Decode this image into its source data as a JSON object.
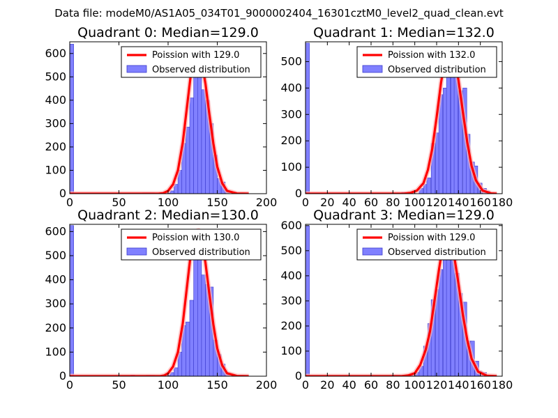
{
  "figure_title": "Data file: modeM0/AS1A05_034T01_9000002404_16301cztM0_level2_quad_clean.evt",
  "colors": {
    "bar_fill": "#8080ff",
    "bar_edge": "#3a3acc",
    "poisson_line": "#ff0000",
    "poisson_glow": "#ffb3b3",
    "axes": "#000000"
  },
  "chart_data": [
    {
      "type": "bar",
      "title": "Quadrant 0: Median=129.0",
      "median": 129.0,
      "xlim": [
        0,
        200
      ],
      "ylim": [
        0,
        650
      ],
      "xticks": [
        0,
        50,
        100,
        150,
        200
      ],
      "yticks": [
        0,
        100,
        200,
        300,
        400,
        500,
        600
      ],
      "bin_width": 4,
      "bins": [
        [
          0,
          640
        ],
        [
          74,
          4
        ],
        [
          78,
          4
        ],
        [
          82,
          4
        ],
        [
          98,
          2
        ],
        [
          102,
          12
        ],
        [
          106,
          40
        ],
        [
          110,
          100
        ],
        [
          114,
          215
        ],
        [
          118,
          285
        ],
        [
          122,
          410
        ],
        [
          126,
          610
        ],
        [
          130,
          525
        ],
        [
          134,
          445
        ],
        [
          138,
          400
        ],
        [
          142,
          300
        ],
        [
          146,
          165
        ],
        [
          150,
          65
        ],
        [
          154,
          50
        ],
        [
          158,
          15
        ]
      ],
      "poisson_x": [
        0,
        90,
        95,
        100,
        105,
        110,
        115,
        120,
        124,
        128,
        130,
        134,
        138,
        142,
        146,
        150,
        155,
        160,
        170,
        182
      ],
      "poisson_y": [
        0,
        0,
        2,
        12,
        40,
        100,
        220,
        400,
        540,
        605,
        610,
        570,
        470,
        340,
        215,
        115,
        45,
        12,
        1,
        0
      ],
      "legend": [
        "Poission with 129.0",
        "Observed distribution"
      ]
    },
    {
      "type": "bar",
      "title": "Quadrant 1: Median=132.0",
      "median": 132.0,
      "xlim": [
        0,
        180
      ],
      "ylim": [
        0,
        575
      ],
      "xticks": [
        0,
        20,
        40,
        60,
        80,
        100,
        120,
        140,
        160,
        180
      ],
      "yticks": [
        0,
        100,
        200,
        300,
        400,
        500
      ],
      "bin_width": 3.6,
      "bins": [
        [
          0,
          570
        ],
        [
          80,
          3
        ],
        [
          88,
          5
        ],
        [
          96,
          5
        ],
        [
          104,
          20
        ],
        [
          108,
          35
        ],
        [
          111,
          60
        ],
        [
          115,
          190
        ],
        [
          119,
          230
        ],
        [
          122,
          375
        ],
        [
          126,
          400
        ],
        [
          129,
          510
        ],
        [
          133,
          545
        ],
        [
          136,
          520
        ],
        [
          140,
          390
        ],
        [
          144,
          400
        ],
        [
          147,
          225
        ],
        [
          151,
          120
        ],
        [
          154,
          105
        ],
        [
          158,
          40
        ],
        [
          162,
          20
        ],
        [
          165,
          10
        ]
      ],
      "poisson_x": [
        0,
        90,
        96,
        102,
        108,
        112,
        116,
        120,
        124,
        128,
        132,
        136,
        140,
        144,
        148,
        152,
        156,
        162,
        170,
        175
      ],
      "poisson_y": [
        0,
        0,
        3,
        12,
        40,
        90,
        170,
        290,
        420,
        520,
        545,
        520,
        430,
        310,
        195,
        105,
        50,
        12,
        1,
        0
      ],
      "legend": [
        "Poission with 132.0",
        "Observed distribution"
      ]
    },
    {
      "type": "bar",
      "title": "Quadrant 2: Median=130.0",
      "median": 130.0,
      "xlim": [
        0,
        200
      ],
      "ylim": [
        0,
        630
      ],
      "xticks": [
        0,
        50,
        100,
        150,
        200
      ],
      "yticks": [
        0,
        100,
        200,
        300,
        400,
        500,
        600
      ],
      "bin_width": 4,
      "bins": [
        [
          0,
          625
        ],
        [
          62,
          5
        ],
        [
          78,
          4
        ],
        [
          82,
          4
        ],
        [
          98,
          3
        ],
        [
          102,
          15
        ],
        [
          106,
          35
        ],
        [
          110,
          100
        ],
        [
          114,
          210
        ],
        [
          118,
          225
        ],
        [
          122,
          315
        ],
        [
          126,
          525
        ],
        [
          130,
          555
        ],
        [
          134,
          420
        ],
        [
          138,
          380
        ],
        [
          142,
          370
        ],
        [
          146,
          150
        ],
        [
          150,
          90
        ],
        [
          154,
          50
        ],
        [
          158,
          15
        ]
      ],
      "poisson_x": [
        0,
        92,
        96,
        100,
        105,
        110,
        115,
        120,
        124,
        128,
        131,
        134,
        138,
        142,
        146,
        150,
        155,
        160,
        170,
        182
      ],
      "poisson_y": [
        0,
        0,
        3,
        12,
        40,
        100,
        220,
        400,
        540,
        600,
        605,
        570,
        470,
        340,
        215,
        115,
        45,
        12,
        1,
        0
      ],
      "legend": [
        "Poission with 130.0",
        "Observed distribution"
      ]
    },
    {
      "type": "bar",
      "title": "Quadrant 3: Median=129.0",
      "median": 129.0,
      "xlim": [
        0,
        180
      ],
      "ylim": [
        0,
        605
      ],
      "xticks": [
        0,
        20,
        40,
        60,
        80,
        100,
        120,
        140,
        160,
        180
      ],
      "yticks": [
        0,
        100,
        200,
        300,
        400,
        500,
        600
      ],
      "bin_width": 3.6,
      "bins": [
        [
          0,
          600
        ],
        [
          79,
          4
        ],
        [
          83,
          4
        ],
        [
          97,
          10
        ],
        [
          101,
          15
        ],
        [
          104,
          40
        ],
        [
          108,
          120
        ],
        [
          112,
          210
        ],
        [
          115,
          305
        ],
        [
          119,
          345
        ],
        [
          122,
          425
        ],
        [
          126,
          510
        ],
        [
          129,
          560
        ],
        [
          133,
          475
        ],
        [
          137,
          410
        ],
        [
          140,
          330
        ],
        [
          144,
          295
        ],
        [
          148,
          140
        ],
        [
          151,
          140
        ],
        [
          155,
          60
        ],
        [
          158,
          20
        ],
        [
          162,
          15
        ]
      ],
      "poisson_x": [
        0,
        88,
        94,
        100,
        105,
        110,
        114,
        118,
        122,
        126,
        129,
        132,
        136,
        140,
        144,
        148,
        152,
        158,
        166,
        175
      ],
      "poisson_y": [
        0,
        0,
        3,
        12,
        45,
        105,
        180,
        300,
        420,
        530,
        575,
        560,
        480,
        370,
        245,
        145,
        70,
        18,
        2,
        0
      ],
      "legend": [
        "Poission with 129.0",
        "Observed distribution"
      ]
    }
  ]
}
